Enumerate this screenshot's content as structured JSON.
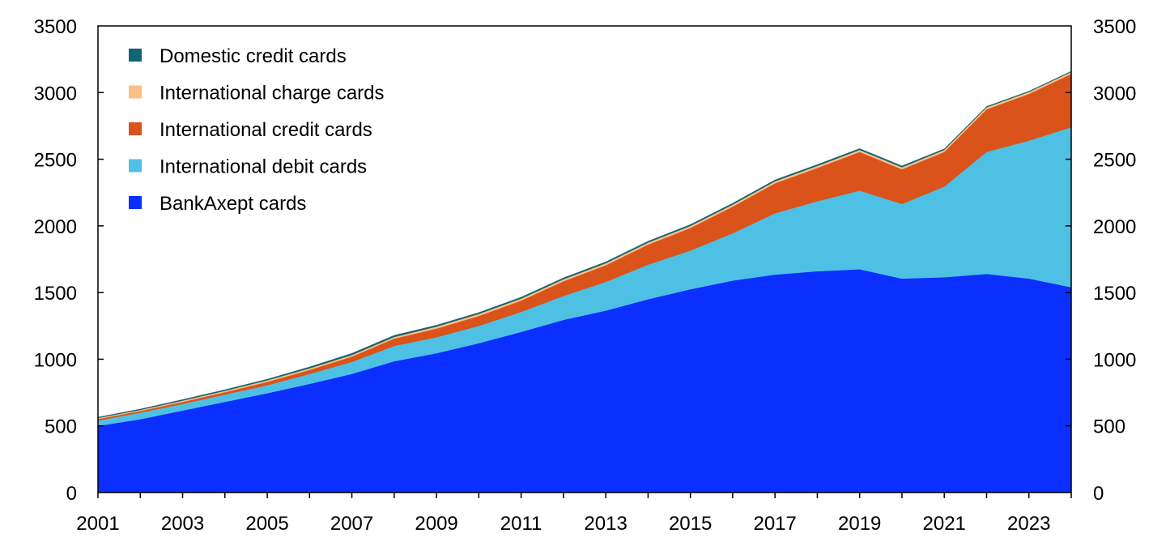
{
  "chart_data": {
    "type": "area",
    "stacked": true,
    "x": [
      2001,
      2002,
      2003,
      2004,
      2005,
      2006,
      2007,
      2008,
      2009,
      2010,
      2011,
      2012,
      2013,
      2014,
      2015,
      2016,
      2017,
      2018,
      2019,
      2020,
      2021,
      2022,
      2023,
      2024
    ],
    "x_tick_labels": [
      "2001",
      "2003",
      "2005",
      "2007",
      "2009",
      "2011",
      "2013",
      "2015",
      "2017",
      "2019",
      "2021",
      "2023"
    ],
    "y_tick_labels": [
      "0",
      "500",
      "1000",
      "1500",
      "2000",
      "2500",
      "3000",
      "3500"
    ],
    "ylim": [
      0,
      3500
    ],
    "y_axis_both_sides": true,
    "grid": false,
    "legend_placement": "top-left",
    "title": "",
    "xlabel": "",
    "ylabel": "",
    "series": [
      {
        "name": "BankAxept cards",
        "color": "#0a2fff",
        "values": [
          500,
          550,
          615,
          680,
          745,
          815,
          890,
          985,
          1045,
          1120,
          1205,
          1295,
          1365,
          1450,
          1525,
          1590,
          1635,
          1660,
          1675,
          1605,
          1615,
          1640,
          1605,
          1540
        ]
      },
      {
        "name": "International debit cards",
        "color": "#4ec0e3",
        "values": [
          40,
          50,
          50,
          55,
          60,
          75,
          90,
          115,
          120,
          130,
          150,
          180,
          215,
          260,
          290,
          355,
          460,
          525,
          590,
          560,
          680,
          915,
          1035,
          1200
        ]
      },
      {
        "name": "International credit cards",
        "color": "#d9531a",
        "values": [
          12,
          12,
          15,
          18,
          25,
          30,
          40,
          55,
          65,
          75,
          85,
          110,
          125,
          150,
          170,
          200,
          225,
          250,
          290,
          260,
          260,
          320,
          350,
          400
        ]
      },
      {
        "name": "International charge cards",
        "color": "#f9bf85",
        "values": [
          8,
          8,
          10,
          10,
          12,
          12,
          12,
          12,
          15,
          15,
          15,
          15,
          15,
          15,
          15,
          15,
          15,
          15,
          15,
          15,
          15,
          15,
          15,
          15
        ]
      },
      {
        "name": "Domestic credit cards",
        "color": "#146478",
        "values": [
          5,
          6,
          7,
          8,
          8,
          10,
          12,
          12,
          10,
          10,
          10,
          10,
          10,
          10,
          10,
          10,
          10,
          10,
          10,
          10,
          8,
          6,
          5,
          5
        ]
      }
    ],
    "legend_order": [
      "Domestic credit cards",
      "International charge cards",
      "International credit cards",
      "International debit cards",
      "BankAxept cards"
    ]
  }
}
